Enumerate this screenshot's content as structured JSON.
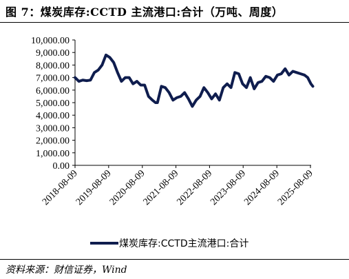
{
  "header": {
    "title": "图 7：煤炭库存:CCTD 主流港口:合计（万吨、周度）"
  },
  "footer": {
    "source": "资料来源：财信证券，Wind"
  },
  "chart_data": {
    "type": "line",
    "title": "",
    "xlabel": "",
    "ylabel": "",
    "ylim": [
      0,
      10000
    ],
    "grid": false,
    "legend_position": "bottom",
    "y_ticks": [
      "0.00",
      "1,000.00",
      "2,000.00",
      "3,000.00",
      "4,000.00",
      "5,000.00",
      "6,000.00",
      "7,000.00",
      "8,000.00",
      "9,000.00",
      "10,000.00"
    ],
    "x_ticks": [
      "2018-08-09",
      "2019-08-09",
      "2020-08-09",
      "2021-08-09",
      "2022-08-09",
      "2023-08-09",
      "2024-08-09",
      "2025-08-09"
    ],
    "color": "#0f1d4e",
    "series": [
      {
        "name": "煤炭库存:CCTD主流港口:合计",
        "points": [
          [
            "2018-08-09",
            7000
          ],
          [
            "2018-09-20",
            6700
          ],
          [
            "2018-11-01",
            6800
          ],
          [
            "2018-12-13",
            6750
          ],
          [
            "2019-01-24",
            6800
          ],
          [
            "2019-03-07",
            7400
          ],
          [
            "2019-04-18",
            7600
          ],
          [
            "2019-05-30",
            8000
          ],
          [
            "2019-07-11",
            8800
          ],
          [
            "2019-08-22",
            8600
          ],
          [
            "2019-10-03",
            8200
          ],
          [
            "2019-11-14",
            7400
          ],
          [
            "2019-12-26",
            6700
          ],
          [
            "2020-02-06",
            7000
          ],
          [
            "2020-03-19",
            7000
          ],
          [
            "2020-04-30",
            6500
          ],
          [
            "2020-06-11",
            6700
          ],
          [
            "2020-07-23",
            6400
          ],
          [
            "2020-09-03",
            6400
          ],
          [
            "2020-10-15",
            5500
          ],
          [
            "2020-11-26",
            5200
          ],
          [
            "2020-12-30",
            5000
          ],
          [
            "2021-01-20",
            5000
          ],
          [
            "2021-03-04",
            6300
          ],
          [
            "2021-04-15",
            6200
          ],
          [
            "2021-05-27",
            5800
          ],
          [
            "2021-07-08",
            5200
          ],
          [
            "2021-08-19",
            5400
          ],
          [
            "2021-09-30",
            5500
          ],
          [
            "2021-11-11",
            5800
          ],
          [
            "2021-12-23",
            5300
          ],
          [
            "2022-02-03",
            4700
          ],
          [
            "2022-03-17",
            5200
          ],
          [
            "2022-04-28",
            5500
          ],
          [
            "2022-06-09",
            6200
          ],
          [
            "2022-07-21",
            5800
          ],
          [
            "2022-09-01",
            5300
          ],
          [
            "2022-10-13",
            5700
          ],
          [
            "2022-11-24",
            5200
          ],
          [
            "2023-01-05",
            6200
          ],
          [
            "2023-02-16",
            6500
          ],
          [
            "2023-03-30",
            6200
          ],
          [
            "2023-05-11",
            7400
          ],
          [
            "2023-06-22",
            7300
          ],
          [
            "2023-08-03",
            6500
          ],
          [
            "2023-09-14",
            6200
          ],
          [
            "2023-10-26",
            7000
          ],
          [
            "2023-12-07",
            6100
          ],
          [
            "2024-01-18",
            6600
          ],
          [
            "2024-02-29",
            6700
          ],
          [
            "2024-04-11",
            7100
          ],
          [
            "2024-05-23",
            7000
          ],
          [
            "2024-07-04",
            6700
          ],
          [
            "2024-08-15",
            7200
          ],
          [
            "2024-09-26",
            7300
          ],
          [
            "2024-11-07",
            7700
          ],
          [
            "2024-12-19",
            7200
          ],
          [
            "2025-01-30",
            7500
          ],
          [
            "2025-03-13",
            7400
          ],
          [
            "2025-04-24",
            7300
          ],
          [
            "2025-06-05",
            7200
          ],
          [
            "2025-07-10",
            7000
          ],
          [
            "2025-08-14",
            6500
          ],
          [
            "2025-09-04",
            6300
          ]
        ]
      }
    ]
  }
}
